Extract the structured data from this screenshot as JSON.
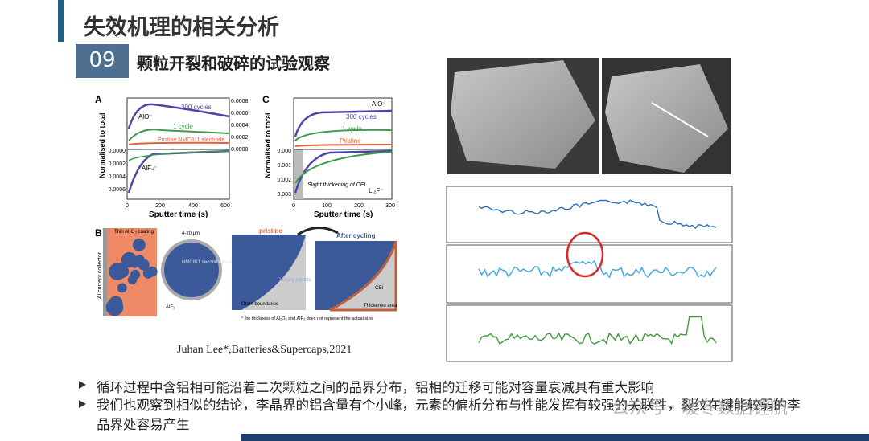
{
  "header": {
    "title": "失效机理的相关分析",
    "section_number": "09",
    "subtitle": "颗粒开裂和破碎的试验观察"
  },
  "figure_left": {
    "panel_a": {
      "label": "A",
      "y_label": "Normalised to total",
      "x_label": "Sputter time (s)",
      "curves": [
        "300 cycles",
        "1 cycle",
        "Pristine NMC811 electrode"
      ],
      "species": [
        "AlO⁻",
        "AlF₄⁻"
      ],
      "x_ticks": [
        "0",
        "200",
        "400",
        "600"
      ],
      "y_ticks_top": [
        "0.0008",
        "0.0006",
        "0.0004",
        "0.0002",
        "0.0000"
      ],
      "y_ticks_bottom": [
        "0.0000",
        "0.0002",
        "0.0004",
        "0.0006"
      ]
    },
    "panel_c": {
      "label": "C",
      "y_label": "Normalised to total",
      "x_label": "Sputter time (s)",
      "curves": [
        "300 cycles",
        "1 cycle",
        "Pristine"
      ],
      "species": [
        "AlO⁻",
        "Li₂F⁻"
      ],
      "note": "Slight thickening of CEI",
      "x_ticks": [
        "0",
        "100",
        "200",
        "300"
      ],
      "y_ticks_bottom": [
        "0.000",
        "0.001",
        "0.002",
        "0.003"
      ]
    },
    "panel_b": {
      "label": "B",
      "collector": "Al current collector",
      "coating": "Thin Al₂O₃ coating",
      "size": "4-20 μm",
      "particle": "NMC811 secondary particle",
      "alf": "AlF₃",
      "pristine": "pristine",
      "after": "After cycling",
      "primary": "Primary particle",
      "grain": "Grain boundaries",
      "cei": "CEI",
      "thickened": "Thickened area",
      "footnote": "* the thickness of Al₂O₃ and AlF₃ does not represent the actual size"
    }
  },
  "citation": "Juhan  Lee*,Batteries&Supercaps,2021",
  "bullets": [
    "循环过程中含铝相可能沿着二次颗粒之间的晶界分布，铝相的迁移可能对容量衰减具有重大影响",
    "我们也观察到相似的结论，李晶界的铝含量有个小峰，元素的偏析分布与性能发挥有较强的关联性，裂纹在键能较弱的李晶界处容易产生"
  ],
  "watermark": "公众号 · 暖冬数据锂航"
}
